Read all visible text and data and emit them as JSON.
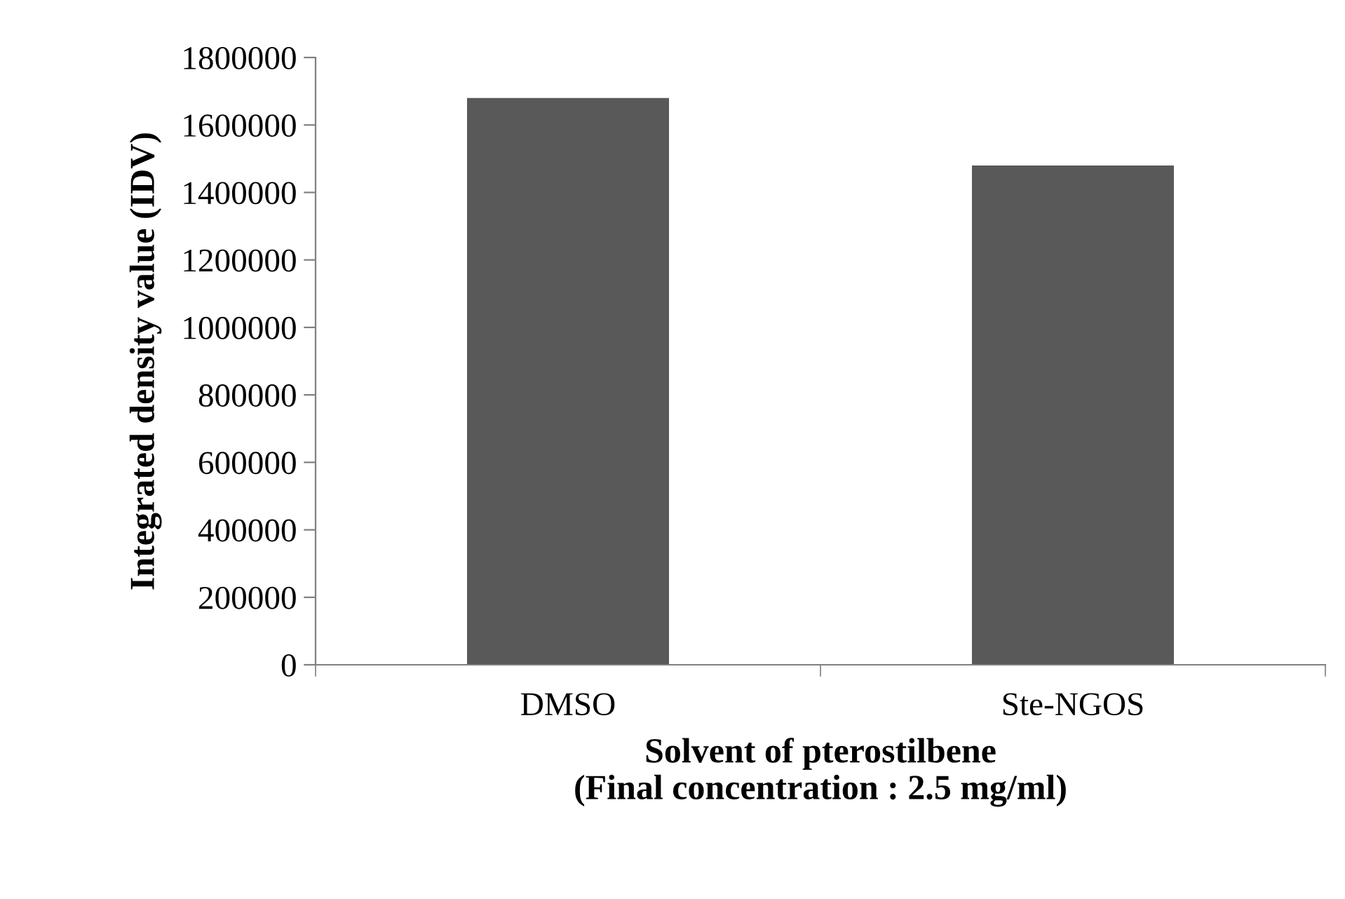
{
  "chart_data": {
    "type": "bar",
    "xlabel": "Solvent of pterostilbene\n(Final concentration : 2.5 mg/ml)",
    "ylabel": "Integrated density value (IDV)",
    "categories": [
      "DMSO",
      "Ste-NGOS"
    ],
    "values": [
      1680000,
      1480000
    ],
    "color": "#595959",
    "ylim": [
      0,
      1800000
    ],
    "yticks": [
      0,
      200000,
      400000,
      600000,
      800000,
      1000000,
      1200000,
      1400000,
      1600000,
      1800000
    ],
    "grid": false,
    "legend": false
  }
}
